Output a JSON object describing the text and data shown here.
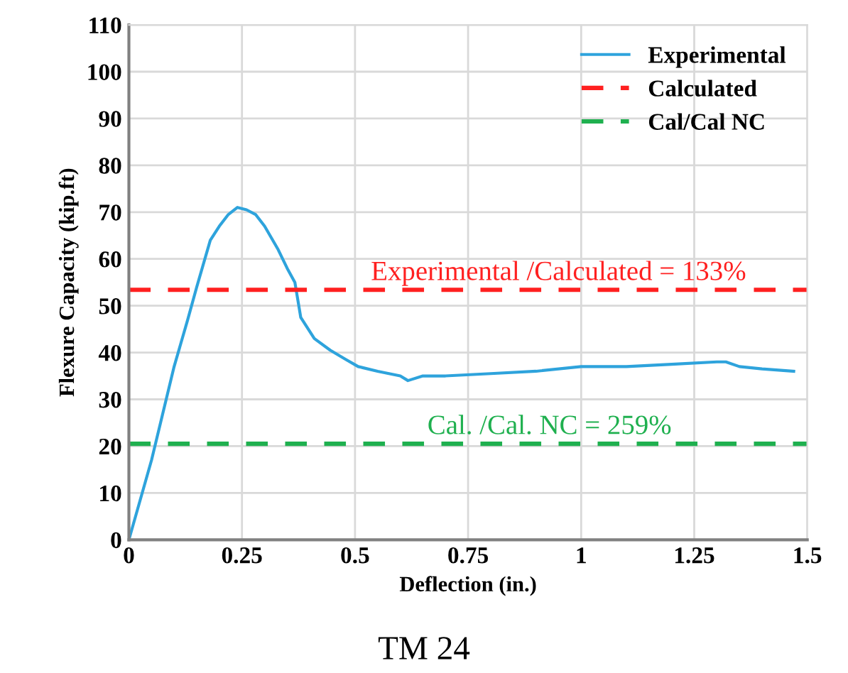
{
  "chart_data": {
    "type": "line",
    "xlabel": "Deflection (in.)",
    "ylabel": "Flexure Capacity (kip.ft)",
    "xlim": [
      0,
      1.5
    ],
    "xticks": [
      0,
      0.25,
      0.5,
      0.75,
      1,
      1.25,
      1.5
    ],
    "ylim": [
      0,
      110
    ],
    "yticks": [
      0,
      10,
      20,
      30,
      40,
      50,
      60,
      70,
      80,
      90,
      100,
      110
    ],
    "grid": true,
    "legend": "top right",
    "series": [
      {
        "name": "Experimental",
        "color": "#2ea3dc",
        "line_style": "solid",
        "x": [
          0,
          0.05,
          0.1,
          0.13,
          0.15,
          0.18,
          0.2,
          0.22,
          0.24,
          0.26,
          0.28,
          0.3,
          0.33,
          0.35,
          0.367,
          0.38,
          0.41,
          0.445,
          0.48,
          0.507,
          0.55,
          0.6,
          0.617,
          0.65,
          0.7,
          0.8,
          0.9,
          1.0,
          1.1,
          1.2,
          1.3,
          1.32,
          1.35,
          1.4,
          1.47
        ],
        "values": [
          0,
          17,
          37,
          47,
          54,
          64,
          67,
          69.5,
          71,
          70.5,
          69.5,
          67,
          62,
          58,
          55,
          47.5,
          43,
          40.5,
          38.5,
          37,
          36,
          35,
          34,
          35,
          35,
          35.5,
          36,
          37,
          37,
          37.5,
          38,
          38,
          37,
          36.5,
          36
        ]
      },
      {
        "name": "Calculated",
        "color": "#ff2020",
        "line_style": "dashed",
        "x": [
          0,
          1.5
        ],
        "values": [
          53.4,
          53.4
        ]
      },
      {
        "name": "Cal/Cal NC",
        "color": "#1fb04f",
        "line_style": "dashed",
        "x": [
          0,
          1.5
        ],
        "values": [
          20.5,
          20.5
        ]
      }
    ],
    "annotations": [
      {
        "text": "Experimental /Calculated = 133%",
        "x": 0.95,
        "y": 53.4
      },
      {
        "text": "Cal. /Cal. NC = 259%",
        "x": 0.93,
        "y": 20.5
      },
      "TM 24"
    ]
  }
}
